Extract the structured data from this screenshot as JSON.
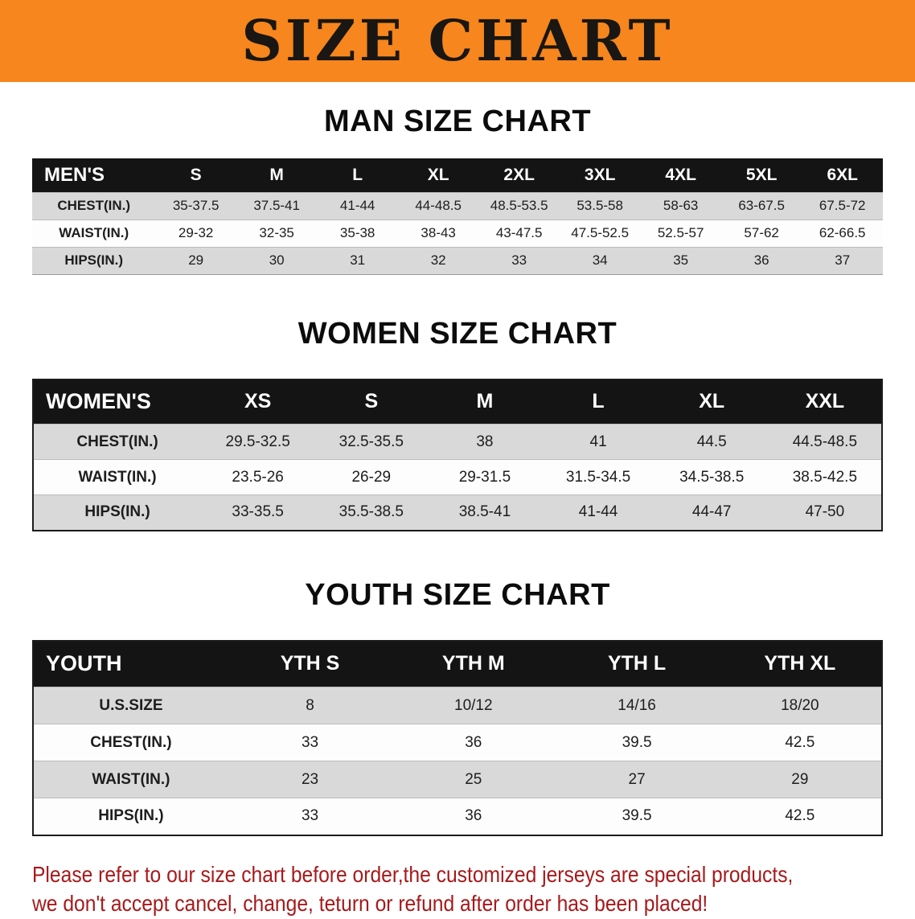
{
  "banner": {
    "title": "SIZE CHART",
    "background_color": "#F6861D",
    "text_color": "#191613"
  },
  "sections": {
    "men": {
      "heading": "MAN SIZE CHART",
      "table": {
        "header": [
          "MEN'S",
          "S",
          "M",
          "L",
          "XL",
          "2XL",
          "3XL",
          "4XL",
          "5XL",
          "6XL"
        ],
        "rows": [
          [
            "CHEST(IN.)",
            "35-37.5",
            "37.5-41",
            "41-44",
            "44-48.5",
            "48.5-53.5",
            "53.5-58",
            "58-63",
            "63-67.5",
            "67.5-72"
          ],
          [
            "WAIST(IN.)",
            "29-32",
            "32-35",
            "35-38",
            "38-43",
            "43-47.5",
            "47.5-52.5",
            "52.5-57",
            "57-62",
            "62-66.5"
          ],
          [
            "HIPS(IN.)",
            "29",
            "30",
            "31",
            "32",
            "33",
            "34",
            "35",
            "36",
            "37"
          ]
        ]
      }
    },
    "women": {
      "heading": "WOMEN SIZE CHART",
      "table": {
        "header": [
          "WOMEN'S",
          "XS",
          "S",
          "M",
          "L",
          "XL",
          "XXL"
        ],
        "rows": [
          [
            "CHEST(IN.)",
            "29.5-32.5",
            "32.5-35.5",
            "38",
            "41",
            "44.5",
            "44.5-48.5"
          ],
          [
            "WAIST(IN.)",
            "23.5-26",
            "26-29",
            "29-31.5",
            "31.5-34.5",
            "34.5-38.5",
            "38.5-42.5"
          ],
          [
            "HIPS(IN.)",
            "33-35.5",
            "35.5-38.5",
            "38.5-41",
            "41-44",
            "44-47",
            "47-50"
          ]
        ]
      }
    },
    "youth": {
      "heading": "YOUTH SIZE CHART",
      "table": {
        "header": [
          "YOUTH",
          "YTH S",
          "YTH M",
          "YTH L",
          "YTH XL"
        ],
        "rows": [
          [
            "U.S.SIZE",
            "8",
            "10/12",
            "14/16",
            "18/20"
          ],
          [
            "CHEST(IN.)",
            "33",
            "36",
            "39.5",
            "42.5"
          ],
          [
            "WAIST(IN.)",
            "23",
            "25",
            "27",
            "29"
          ],
          [
            "HIPS(IN.)",
            "33",
            "36",
            "39.5",
            "42.5"
          ]
        ]
      }
    }
  },
  "footer": {
    "line1": "Please refer to our size chart before order,the customized jerseys are special products,",
    "line2": "we don't accept cancel, change, teturn or refund after order has been placed!",
    "text_color": "#A7191B"
  }
}
